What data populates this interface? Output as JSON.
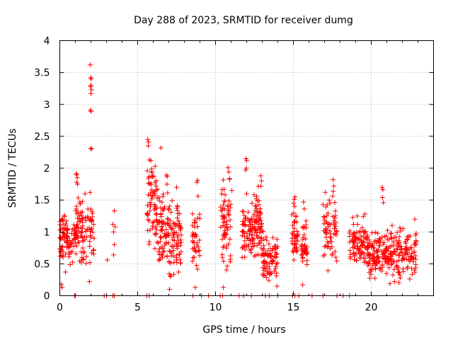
{
  "chart_data": {
    "type": "scatter",
    "title": "Day 288 of 2023, SRMTID for receiver dumg",
    "xlabel": "GPS time / hours",
    "ylabel": "SRMTID / TECUs",
    "xlim": [
      0,
      24
    ],
    "ylim": [
      0,
      4
    ],
    "x_ticks": [
      0,
      5,
      10,
      15,
      20
    ],
    "x_tick_labels": [
      "0",
      "5",
      "10",
      "15",
      "20"
    ],
    "y_ticks": [
      0,
      0.5,
      1,
      1.5,
      2,
      2.5,
      3,
      3.5,
      4
    ],
    "y_tick_labels": [
      "0",
      "0.5",
      "1",
      "1.5",
      "2",
      "2.5",
      "3",
      "3.5",
      "4"
    ],
    "grid": true,
    "marker": "+",
    "series": [
      {
        "name": "SRMTID",
        "clusters": [
          {
            "x_range": [
              0.0,
              0.5
            ],
            "y_range": [
              0.15,
              1.6
            ],
            "count": 55
          },
          {
            "x_range": [
              0.4,
              1.1
            ],
            "y_range": [
              0.4,
              1.3
            ],
            "count": 45
          },
          {
            "x_range": [
              1.0,
              1.5
            ],
            "y_range": [
              0.3,
              1.95
            ],
            "count": 55
          },
          {
            "x_range": [
              1.5,
              2.2
            ],
            "y_range": [
              0.15,
              1.65
            ],
            "count": 45
          },
          {
            "x_range": [
              5.6,
              6.2
            ],
            "y_range": [
              0.4,
              2.45
            ],
            "count": 55
          },
          {
            "x_range": [
              6.2,
              7.0
            ],
            "y_range": [
              0.2,
              1.9
            ],
            "count": 80
          },
          {
            "x_range": [
              7.0,
              7.8
            ],
            "y_range": [
              0.1,
              1.7
            ],
            "count": 80
          },
          {
            "x_range": [
              8.5,
              9.0
            ],
            "y_range": [
              0.1,
              1.85
            ],
            "count": 40
          },
          {
            "x_range": [
              10.3,
              11.0
            ],
            "y_range": [
              0.15,
              2.0
            ],
            "count": 65
          },
          {
            "x_range": [
              11.7,
              12.4
            ],
            "y_range": [
              0.45,
              1.6
            ],
            "count": 65
          },
          {
            "x_range": [
              12.4,
              13.0
            ],
            "y_range": [
              0.35,
              1.85
            ],
            "count": 70
          },
          {
            "x_range": [
              13.0,
              14.0
            ],
            "y_range": [
              0.15,
              1.05
            ],
            "count": 85
          },
          {
            "x_range": [
              14.9,
              15.3
            ],
            "y_range": [
              0.45,
              1.55
            ],
            "count": 40
          },
          {
            "x_range": [
              15.5,
              15.9
            ],
            "y_range": [
              0.15,
              1.45
            ],
            "count": 40
          },
          {
            "x_range": [
              16.9,
              17.8
            ],
            "y_range": [
              0.25,
              1.82
            ],
            "count": 65
          },
          {
            "x_range": [
              18.6,
              19.8
            ],
            "y_range": [
              0.25,
              1.3
            ],
            "count": 100
          },
          {
            "x_range": [
              19.8,
              21.0
            ],
            "y_range": [
              0.15,
              1.1
            ],
            "count": 110
          },
          {
            "x_range": [
              21.0,
              22.9
            ],
            "y_range": [
              0.15,
              1.2
            ],
            "count": 140
          }
        ],
        "points": [
          [
            1.95,
            3.62
          ],
          [
            1.98,
            3.42
          ],
          [
            2.02,
            3.4
          ],
          [
            2.0,
            3.3
          ],
          [
            1.97,
            3.28
          ],
          [
            2.03,
            3.23
          ],
          [
            2.0,
            3.17
          ],
          [
            1.96,
            2.91
          ],
          [
            2.01,
            2.89
          ],
          [
            1.99,
            2.31
          ],
          [
            2.03,
            2.3
          ],
          [
            1.62,
            1.6
          ],
          [
            1.95,
            1.62
          ],
          [
            1.05,
            1.91
          ],
          [
            1.1,
            1.9
          ],
          [
            1.12,
            1.85
          ],
          [
            1.08,
            1.78
          ],
          [
            1.14,
            1.75
          ],
          [
            3.5,
            1.33
          ],
          [
            3.4,
            1.12
          ],
          [
            3.55,
            1.08
          ],
          [
            3.45,
            1.0
          ],
          [
            3.5,
            0.8
          ],
          [
            3.45,
            0.64
          ],
          [
            3.05,
            0.56
          ],
          [
            5.65,
            2.45
          ],
          [
            5.7,
            2.41
          ],
          [
            5.68,
            2.35
          ],
          [
            5.75,
            2.13
          ],
          [
            5.85,
            2.12
          ],
          [
            6.5,
            2.32
          ],
          [
            5.9,
            1.93
          ],
          [
            5.95,
            1.88
          ],
          [
            5.8,
            1.75
          ],
          [
            6.85,
            1.89
          ],
          [
            6.9,
            1.87
          ],
          [
            6.88,
            1.75
          ],
          [
            7.5,
            1.7
          ],
          [
            8.85,
            1.81
          ],
          [
            8.8,
            1.78
          ],
          [
            10.8,
            2.01
          ],
          [
            10.85,
            1.94
          ],
          [
            10.9,
            1.84
          ],
          [
            11.05,
            1.65
          ],
          [
            11.95,
            2.15
          ],
          [
            12.0,
            2.12
          ],
          [
            11.98,
            2.0
          ],
          [
            11.93,
            1.97
          ],
          [
            12.0,
            1.6
          ],
          [
            12.9,
            1.88
          ],
          [
            12.95,
            1.8
          ],
          [
            12.92,
            1.72
          ],
          [
            15.1,
            1.55
          ],
          [
            15.05,
            1.51
          ],
          [
            15.02,
            1.45
          ],
          [
            15.08,
            1.4
          ],
          [
            15.65,
            1.47
          ],
          [
            15.7,
            1.36
          ],
          [
            17.05,
            1.62
          ],
          [
            17.55,
            1.82
          ],
          [
            17.6,
            1.72
          ],
          [
            17.3,
            1.5
          ],
          [
            17.35,
            1.45
          ],
          [
            20.7,
            1.7
          ],
          [
            20.75,
            1.66
          ],
          [
            20.72,
            1.54
          ],
          [
            20.78,
            1.46
          ],
          [
            22.8,
            1.2
          ],
          [
            19.6,
            1.28
          ],
          [
            19.1,
            1.25
          ],
          [
            1.9,
            0.22
          ],
          [
            0.1,
            0.18
          ],
          [
            0.15,
            0.13
          ],
          [
            7.05,
            0.1
          ],
          [
            8.7,
            0.13
          ],
          [
            10.5,
            0.13
          ],
          [
            13.95,
            0.15
          ],
          [
            15.6,
            0.17
          ],
          [
            21.2,
            0.19
          ],
          [
            21.5,
            0.22
          ]
        ],
        "zero_points": [
          0.95,
          1.0,
          2.85,
          3.0,
          3.4,
          3.5,
          5.6,
          5.75,
          8.55,
          9.1,
          9.55,
          10.3,
          10.45,
          11.5,
          11.8,
          12.3,
          13.2,
          13.45,
          14.0,
          14.95,
          15.1,
          15.35,
          16.2,
          16.9,
          17.8,
          18.2,
          18.6
        ]
      }
    ],
    "colors": {
      "marker": "#ff0000",
      "grid": "#a0a0a0",
      "axis": "#000000"
    }
  }
}
